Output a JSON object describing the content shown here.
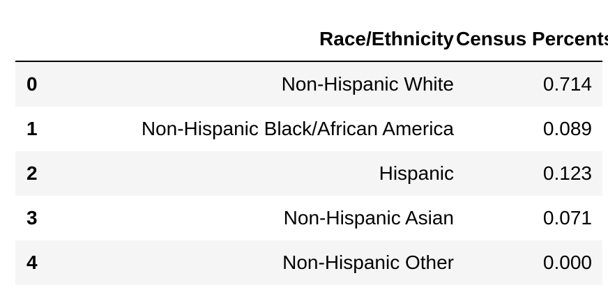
{
  "table": {
    "columns": [
      "",
      "Race/Ethnicity",
      "Census Percents"
    ],
    "rows": [
      {
        "index": "0",
        "race": "Non-Hispanic White",
        "pct": "0.714"
      },
      {
        "index": "1",
        "race": "Non-Hispanic Black/African America",
        "pct": "0.089"
      },
      {
        "index": "2",
        "race": "Hispanic",
        "pct": "0.123"
      },
      {
        "index": "3",
        "race": "Non-Hispanic Asian",
        "pct": "0.071"
      },
      {
        "index": "4",
        "race": "Non-Hispanic Other",
        "pct": "0.000"
      }
    ]
  },
  "chart_data": {
    "type": "table",
    "columns": [
      "Race/Ethnicity",
      "Census Percents"
    ],
    "index": [
      0,
      1,
      2,
      3,
      4
    ],
    "rows": [
      [
        "Non-Hispanic White",
        0.714
      ],
      [
        "Non-Hispanic Black/African America",
        0.089
      ],
      [
        "Hispanic",
        0.123
      ],
      [
        "Non-Hispanic Asian",
        0.071
      ],
      [
        "Non-Hispanic Other",
        0.0
      ]
    ]
  },
  "colors": {
    "stripe_row": "#f5f5f5",
    "plain_row": "#ffffff",
    "header_rule": "#000000",
    "text": "#000000"
  }
}
